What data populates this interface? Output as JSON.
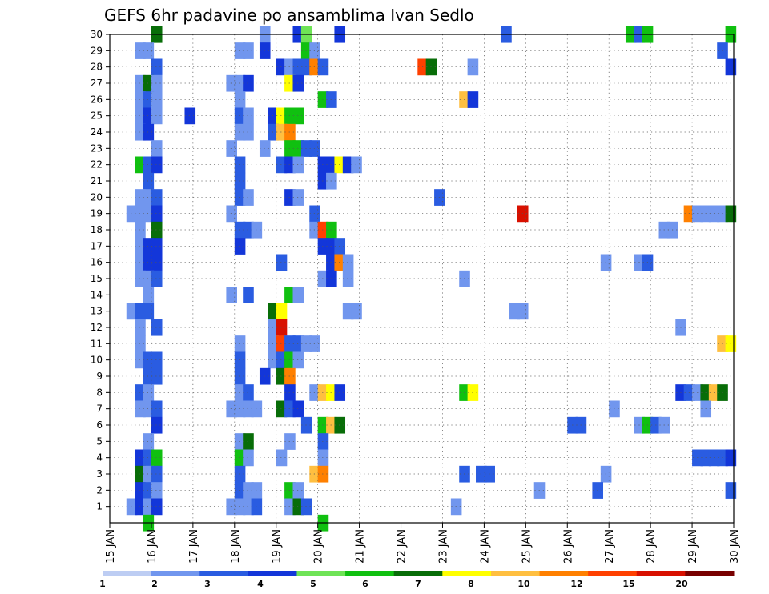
{
  "chart_data": {
    "type": "heatmap",
    "title": "GEFS 6hr padavine po ansamblima Ivan Sedlo",
    "xlabel": "",
    "ylabel": "",
    "x_ticks": [
      "15 JAN",
      "16 JAN",
      "17 JAN",
      "18 JAN",
      "19 JAN",
      "20 JAN",
      "21 JAN",
      "22 JAN",
      "23 JAN",
      "24 JAN",
      "25 JAN",
      "26 JAN",
      "27 JAN",
      "28 JAN",
      "29 JAN",
      "30 JAN"
    ],
    "x_range": [
      "15 JAN 00Z",
      "30 JAN 00Z"
    ],
    "x_step_hours": 6,
    "y_ticks": [
      1,
      2,
      3,
      4,
      5,
      6,
      7,
      8,
      9,
      10,
      11,
      12,
      13,
      14,
      15,
      16,
      17,
      18,
      19,
      20,
      21,
      22,
      23,
      24,
      25,
      26,
      27,
      28,
      29,
      30
    ],
    "y_range": [
      0,
      30
    ],
    "grid": true,
    "colorbar": {
      "levels": [
        "1",
        "2",
        "3",
        "4",
        "5",
        "6",
        "7",
        "8",
        "10",
        "12",
        "15",
        "20"
      ],
      "colors": [
        "#bdcdf3",
        "#7196ee",
        "#2a5ce1",
        "#1336d9",
        "#6fe356",
        "#10c010",
        "#086d08",
        "#ffff00",
        "#ffbf40",
        "#ff8000",
        "#ff4000",
        "#d81000",
        "#780000"
      ]
    },
    "series": [
      {
        "member": 30,
        "cells": [
          [
            16.0,
            6
          ],
          [
            16.0,
            6
          ],
          [
            18.6,
            1
          ],
          [
            19.4,
            3
          ],
          [
            19.6,
            4
          ],
          [
            20.4,
            3
          ],
          [
            24.4,
            2
          ],
          [
            27.4,
            5
          ],
          [
            27.6,
            2
          ],
          [
            27.8,
            5
          ],
          [
            29.8,
            5
          ]
        ]
      },
      {
        "member": 29,
        "cells": [
          [
            15.6,
            1
          ],
          [
            15.8,
            1
          ],
          [
            18.0,
            1
          ],
          [
            18.2,
            1
          ],
          [
            18.6,
            3
          ],
          [
            19.6,
            5
          ],
          [
            19.8,
            1
          ],
          [
            29.6,
            2
          ]
        ]
      },
      {
        "member": 28,
        "cells": [
          [
            16.0,
            2
          ],
          [
            19.0,
            3
          ],
          [
            19.2,
            1
          ],
          [
            19.4,
            2
          ],
          [
            19.6,
            2
          ],
          [
            19.8,
            9
          ],
          [
            20.0,
            2
          ],
          [
            22.4,
            10
          ],
          [
            22.6,
            6
          ],
          [
            23.6,
            1
          ],
          [
            29.8,
            3
          ]
        ]
      },
      {
        "member": 27,
        "cells": [
          [
            15.6,
            1
          ],
          [
            15.8,
            6
          ],
          [
            16.0,
            1
          ],
          [
            17.8,
            1
          ],
          [
            18.0,
            1
          ],
          [
            18.2,
            3
          ],
          [
            19.2,
            7
          ],
          [
            19.4,
            3
          ]
        ]
      },
      {
        "member": 26,
        "cells": [
          [
            15.6,
            1
          ],
          [
            15.8,
            2
          ],
          [
            16.0,
            1
          ],
          [
            18.0,
            1
          ],
          [
            20.0,
            5
          ],
          [
            20.2,
            2
          ],
          [
            23.4,
            8
          ],
          [
            23.6,
            3
          ]
        ]
      },
      {
        "member": 25,
        "cells": [
          [
            15.6,
            1
          ],
          [
            15.8,
            3
          ],
          [
            16.0,
            1
          ],
          [
            16.8,
            3
          ],
          [
            18.0,
            2
          ],
          [
            18.2,
            1
          ],
          [
            18.8,
            3
          ],
          [
            19.0,
            7
          ],
          [
            19.2,
            5
          ],
          [
            19.4,
            5
          ]
        ]
      },
      {
        "member": 24,
        "cells": [
          [
            15.6,
            1
          ],
          [
            15.8,
            3
          ],
          [
            18.0,
            1
          ],
          [
            18.2,
            1
          ],
          [
            18.8,
            2
          ],
          [
            19.0,
            8
          ],
          [
            19.2,
            9
          ]
        ]
      },
      {
        "member": 23,
        "cells": [
          [
            16.0,
            1
          ],
          [
            17.8,
            1
          ],
          [
            18.6,
            1
          ],
          [
            19.2,
            5
          ],
          [
            19.4,
            5
          ],
          [
            19.6,
            2
          ],
          [
            19.8,
            2
          ]
        ]
      },
      {
        "member": 22,
        "cells": [
          [
            15.6,
            5
          ],
          [
            15.8,
            2
          ],
          [
            16.0,
            3
          ],
          [
            18.0,
            2
          ],
          [
            19.0,
            2
          ],
          [
            19.2,
            3
          ],
          [
            19.4,
            1
          ],
          [
            20.0,
            3
          ],
          [
            20.2,
            3
          ],
          [
            20.4,
            7
          ],
          [
            20.6,
            3
          ],
          [
            20.8,
            1
          ]
        ]
      },
      {
        "member": 21,
        "cells": [
          [
            15.8,
            2
          ],
          [
            18.0,
            2
          ],
          [
            20.0,
            3
          ],
          [
            20.2,
            1
          ]
        ]
      },
      {
        "member": 20,
        "cells": [
          [
            15.6,
            1
          ],
          [
            15.8,
            1
          ],
          [
            16.0,
            2
          ],
          [
            18.0,
            2
          ],
          [
            18.2,
            1
          ],
          [
            19.2,
            3
          ],
          [
            19.4,
            1
          ],
          [
            22.8,
            2
          ]
        ]
      },
      {
        "member": 19,
        "cells": [
          [
            15.4,
            1
          ],
          [
            15.6,
            1
          ],
          [
            15.8,
            1
          ],
          [
            16.0,
            3
          ],
          [
            17.8,
            1
          ],
          [
            19.8,
            2
          ],
          [
            24.8,
            11
          ],
          [
            28.8,
            9
          ],
          [
            29.0,
            1
          ],
          [
            29.2,
            1
          ],
          [
            29.4,
            1
          ],
          [
            29.6,
            1
          ],
          [
            29.8,
            6
          ]
        ]
      },
      {
        "member": 18,
        "cells": [
          [
            15.6,
            1
          ],
          [
            16.0,
            6
          ],
          [
            18.0,
            2
          ],
          [
            18.2,
            2
          ],
          [
            18.4,
            1
          ],
          [
            19.8,
            1
          ],
          [
            20.0,
            10
          ],
          [
            20.2,
            5
          ],
          [
            28.2,
            1
          ],
          [
            28.4,
            1
          ]
        ]
      },
      {
        "member": 17,
        "cells": [
          [
            15.6,
            1
          ],
          [
            15.8,
            3
          ],
          [
            16.0,
            3
          ],
          [
            18.0,
            3
          ],
          [
            20.0,
            3
          ],
          [
            20.2,
            3
          ],
          [
            20.4,
            2
          ]
        ]
      },
      {
        "member": 16,
        "cells": [
          [
            15.6,
            1
          ],
          [
            15.8,
            3
          ],
          [
            16.0,
            3
          ],
          [
            19.0,
            2
          ],
          [
            20.2,
            3
          ],
          [
            20.4,
            9
          ],
          [
            20.6,
            1
          ],
          [
            26.8,
            1
          ],
          [
            27.6,
            1
          ],
          [
            27.8,
            2
          ]
        ]
      },
      {
        "member": 15,
        "cells": [
          [
            15.6,
            1
          ],
          [
            15.8,
            1
          ],
          [
            16.0,
            2
          ],
          [
            20.0,
            1
          ],
          [
            20.2,
            3
          ],
          [
            20.6,
            1
          ],
          [
            23.4,
            1
          ]
        ]
      },
      {
        "member": 14,
        "cells": [
          [
            15.8,
            1
          ],
          [
            17.8,
            1
          ],
          [
            18.2,
            2
          ],
          [
            19.2,
            5
          ],
          [
            19.4,
            1
          ]
        ]
      },
      {
        "member": 13,
        "cells": [
          [
            15.4,
            1
          ],
          [
            15.6,
            2
          ],
          [
            15.8,
            2
          ],
          [
            18.8,
            6
          ],
          [
            19.0,
            7
          ],
          [
            20.6,
            1
          ],
          [
            20.8,
            1
          ],
          [
            24.6,
            1
          ],
          [
            24.8,
            1
          ]
        ]
      },
      {
        "member": 12,
        "cells": [
          [
            15.6,
            1
          ],
          [
            16.0,
            2
          ],
          [
            18.8,
            1
          ],
          [
            19.0,
            11
          ],
          [
            28.6,
            1
          ]
        ]
      },
      {
        "member": 11,
        "cells": [
          [
            15.6,
            1
          ],
          [
            18.0,
            1
          ],
          [
            18.8,
            1
          ],
          [
            19.0,
            10
          ],
          [
            19.2,
            2
          ],
          [
            19.4,
            2
          ],
          [
            19.6,
            1
          ],
          [
            19.8,
            1
          ],
          [
            29.6,
            8
          ],
          [
            29.8,
            7
          ]
        ]
      },
      {
        "member": 10,
        "cells": [
          [
            15.6,
            1
          ],
          [
            15.8,
            2
          ],
          [
            16.0,
            2
          ],
          [
            18.0,
            2
          ],
          [
            18.8,
            1
          ],
          [
            19.0,
            2
          ],
          [
            19.2,
            5
          ],
          [
            19.4,
            1
          ]
        ]
      },
      {
        "member": 9,
        "cells": [
          [
            15.8,
            2
          ],
          [
            16.0,
            2
          ],
          [
            18.0,
            2
          ],
          [
            18.6,
            3
          ],
          [
            19.0,
            6
          ],
          [
            19.2,
            9
          ]
        ]
      },
      {
        "member": 8,
        "cells": [
          [
            15.6,
            2
          ],
          [
            15.8,
            1
          ],
          [
            18.0,
            1
          ],
          [
            18.2,
            2
          ],
          [
            19.2,
            3
          ],
          [
            19.8,
            1
          ],
          [
            20.0,
            8
          ],
          [
            20.2,
            7
          ],
          [
            20.4,
            3
          ],
          [
            23.4,
            5
          ],
          [
            23.6,
            7
          ],
          [
            28.6,
            3
          ],
          [
            28.8,
            2
          ],
          [
            29.0,
            1
          ],
          [
            29.2,
            6
          ],
          [
            29.4,
            8
          ],
          [
            29.6,
            6
          ]
        ]
      },
      {
        "member": 7,
        "cells": [
          [
            15.6,
            1
          ],
          [
            15.8,
            1
          ],
          [
            16.0,
            2
          ],
          [
            17.8,
            1
          ],
          [
            18.0,
            1
          ],
          [
            18.2,
            1
          ],
          [
            18.4,
            1
          ],
          [
            19.0,
            6
          ],
          [
            19.2,
            2
          ],
          [
            19.4,
            3
          ],
          [
            27.0,
            1
          ],
          [
            29.2,
            1
          ]
        ]
      },
      {
        "member": 6,
        "cells": [
          [
            16.0,
            3
          ],
          [
            19.6,
            2
          ],
          [
            20.0,
            5
          ],
          [
            20.2,
            8
          ],
          [
            20.4,
            6
          ],
          [
            26.0,
            2
          ],
          [
            26.2,
            2
          ],
          [
            27.6,
            1
          ],
          [
            27.8,
            5
          ],
          [
            28.0,
            2
          ],
          [
            28.2,
            1
          ]
        ]
      },
      {
        "member": 5,
        "cells": [
          [
            15.8,
            1
          ],
          [
            18.0,
            1
          ],
          [
            18.2,
            6
          ],
          [
            19.2,
            1
          ],
          [
            20.0,
            2
          ]
        ]
      },
      {
        "member": 4,
        "cells": [
          [
            15.6,
            3
          ],
          [
            15.8,
            2
          ],
          [
            16.0,
            5
          ],
          [
            18.0,
            5
          ],
          [
            18.2,
            1
          ],
          [
            19.0,
            1
          ],
          [
            20.0,
            1
          ],
          [
            29.0,
            2
          ],
          [
            29.2,
            2
          ],
          [
            29.4,
            2
          ],
          [
            29.6,
            2
          ],
          [
            29.8,
            3
          ]
        ]
      },
      {
        "member": 3,
        "cells": [
          [
            15.6,
            6
          ],
          [
            15.8,
            1
          ],
          [
            16.0,
            2
          ],
          [
            18.0,
            2
          ],
          [
            19.8,
            8
          ],
          [
            20.0,
            9
          ],
          [
            23.4,
            2
          ],
          [
            23.8,
            2
          ],
          [
            24.0,
            2
          ],
          [
            26.8,
            1
          ]
        ]
      },
      {
        "member": 2,
        "cells": [
          [
            15.6,
            3
          ],
          [
            15.8,
            2
          ],
          [
            16.0,
            1
          ],
          [
            18.0,
            2
          ],
          [
            18.2,
            1
          ],
          [
            18.4,
            1
          ],
          [
            19.2,
            5
          ],
          [
            19.4,
            1
          ],
          [
            25.2,
            1
          ],
          [
            26.6,
            2
          ],
          [
            29.8,
            2
          ]
        ]
      },
      {
        "member": 1,
        "cells": [
          [
            15.4,
            1
          ],
          [
            15.6,
            3
          ],
          [
            15.8,
            1
          ],
          [
            16.0,
            3
          ],
          [
            17.8,
            1
          ],
          [
            18.0,
            1
          ],
          [
            18.2,
            1
          ],
          [
            18.4,
            2
          ],
          [
            19.2,
            1
          ],
          [
            19.4,
            6
          ],
          [
            19.6,
            2
          ],
          [
            23.2,
            1
          ]
        ]
      },
      {
        "member": 0,
        "cells": [
          [
            15.8,
            5
          ],
          [
            20.0,
            5
          ]
        ]
      }
    ]
  }
}
